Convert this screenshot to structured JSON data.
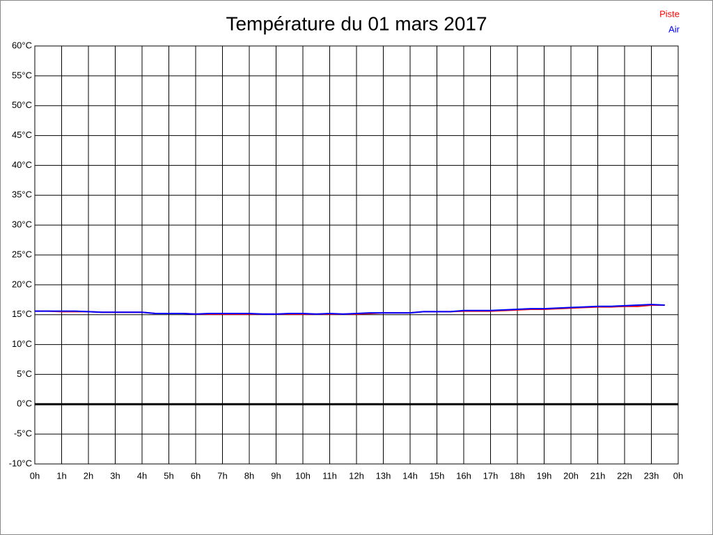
{
  "chart_data": {
    "type": "line",
    "title": "Température du 01 mars 2017",
    "x": [
      0,
      0.5,
      1,
      1.5,
      2,
      2.5,
      3,
      3.5,
      4,
      4.5,
      5,
      5.5,
      6,
      6.5,
      7,
      7.5,
      8,
      8.5,
      9,
      9.5,
      10,
      10.5,
      11,
      11.5,
      12,
      12.5,
      13,
      13.5,
      14,
      14.5,
      15,
      15.5,
      16,
      16.5,
      17,
      17.5,
      18,
      18.5,
      19,
      19.5,
      20,
      20.5,
      21,
      21.5,
      22,
      22.5,
      23,
      23.5
    ],
    "series": [
      {
        "name": "Piste",
        "color": "#ff0000",
        "values": [
          15.6,
          15.6,
          15.5,
          15.5,
          15.5,
          15.4,
          15.4,
          15.4,
          15.4,
          15.2,
          15.2,
          15.2,
          15.1,
          15.1,
          15.1,
          15.1,
          15.1,
          15.1,
          15.1,
          15.1,
          15.1,
          15.1,
          15.1,
          15.1,
          15.1,
          15.2,
          15.3,
          15.3,
          15.3,
          15.5,
          15.5,
          15.5,
          15.6,
          15.6,
          15.6,
          15.7,
          15.8,
          15.9,
          15.9,
          16.0,
          16.1,
          16.2,
          16.3,
          16.3,
          16.4,
          16.4,
          16.6,
          16.6
        ]
      },
      {
        "name": "Air",
        "color": "#0000ff",
        "values": [
          15.6,
          15.6,
          15.6,
          15.6,
          15.5,
          15.4,
          15.4,
          15.4,
          15.4,
          15.2,
          15.2,
          15.2,
          15.1,
          15.2,
          15.2,
          15.2,
          15.2,
          15.1,
          15.1,
          15.2,
          15.2,
          15.1,
          15.2,
          15.1,
          15.2,
          15.3,
          15.3,
          15.3,
          15.3,
          15.5,
          15.5,
          15.5,
          15.7,
          15.7,
          15.7,
          15.8,
          15.9,
          16.0,
          16.0,
          16.1,
          16.2,
          16.3,
          16.4,
          16.4,
          16.5,
          16.6,
          16.7,
          16.6
        ]
      }
    ],
    "xlim": [
      0,
      24
    ],
    "xticks": [
      {
        "value": 0,
        "label": "0h"
      },
      {
        "value": 1,
        "label": "1h"
      },
      {
        "value": 2,
        "label": "2h"
      },
      {
        "value": 3,
        "label": "3h"
      },
      {
        "value": 4,
        "label": "4h"
      },
      {
        "value": 5,
        "label": "5h"
      },
      {
        "value": 6,
        "label": "6h"
      },
      {
        "value": 7,
        "label": "7h"
      },
      {
        "value": 8,
        "label": "8h"
      },
      {
        "value": 9,
        "label": "9h"
      },
      {
        "value": 10,
        "label": "10h"
      },
      {
        "value": 11,
        "label": "11h"
      },
      {
        "value": 12,
        "label": "12h"
      },
      {
        "value": 13,
        "label": "13h"
      },
      {
        "value": 14,
        "label": "14h"
      },
      {
        "value": 15,
        "label": "15h"
      },
      {
        "value": 16,
        "label": "16h"
      },
      {
        "value": 17,
        "label": "17h"
      },
      {
        "value": 18,
        "label": "18h"
      },
      {
        "value": 19,
        "label": "19h"
      },
      {
        "value": 20,
        "label": "20h"
      },
      {
        "value": 21,
        "label": "21h"
      },
      {
        "value": 22,
        "label": "22h"
      },
      {
        "value": 23,
        "label": "23h"
      },
      {
        "value": 24,
        "label": "0h"
      }
    ],
    "ylim": [
      -10,
      60
    ],
    "yticks": [
      {
        "value": -10,
        "label": "-10°C"
      },
      {
        "value": -5,
        "label": "-5°C"
      },
      {
        "value": 0,
        "label": "0°C"
      },
      {
        "value": 5,
        "label": "5°C"
      },
      {
        "value": 10,
        "label": "10°C"
      },
      {
        "value": 15,
        "label": "15°C"
      },
      {
        "value": 20,
        "label": "20°C"
      },
      {
        "value": 25,
        "label": "25°C"
      },
      {
        "value": 30,
        "label": "30°C"
      },
      {
        "value": 35,
        "label": "35°C"
      },
      {
        "value": 40,
        "label": "40°C"
      },
      {
        "value": 45,
        "label": "45°C"
      },
      {
        "value": 50,
        "label": "50°C"
      },
      {
        "value": 55,
        "label": "55°C"
      },
      {
        "value": 60,
        "label": "60°C"
      }
    ],
    "grid": true,
    "zero_line": true,
    "legend": "top-right"
  }
}
